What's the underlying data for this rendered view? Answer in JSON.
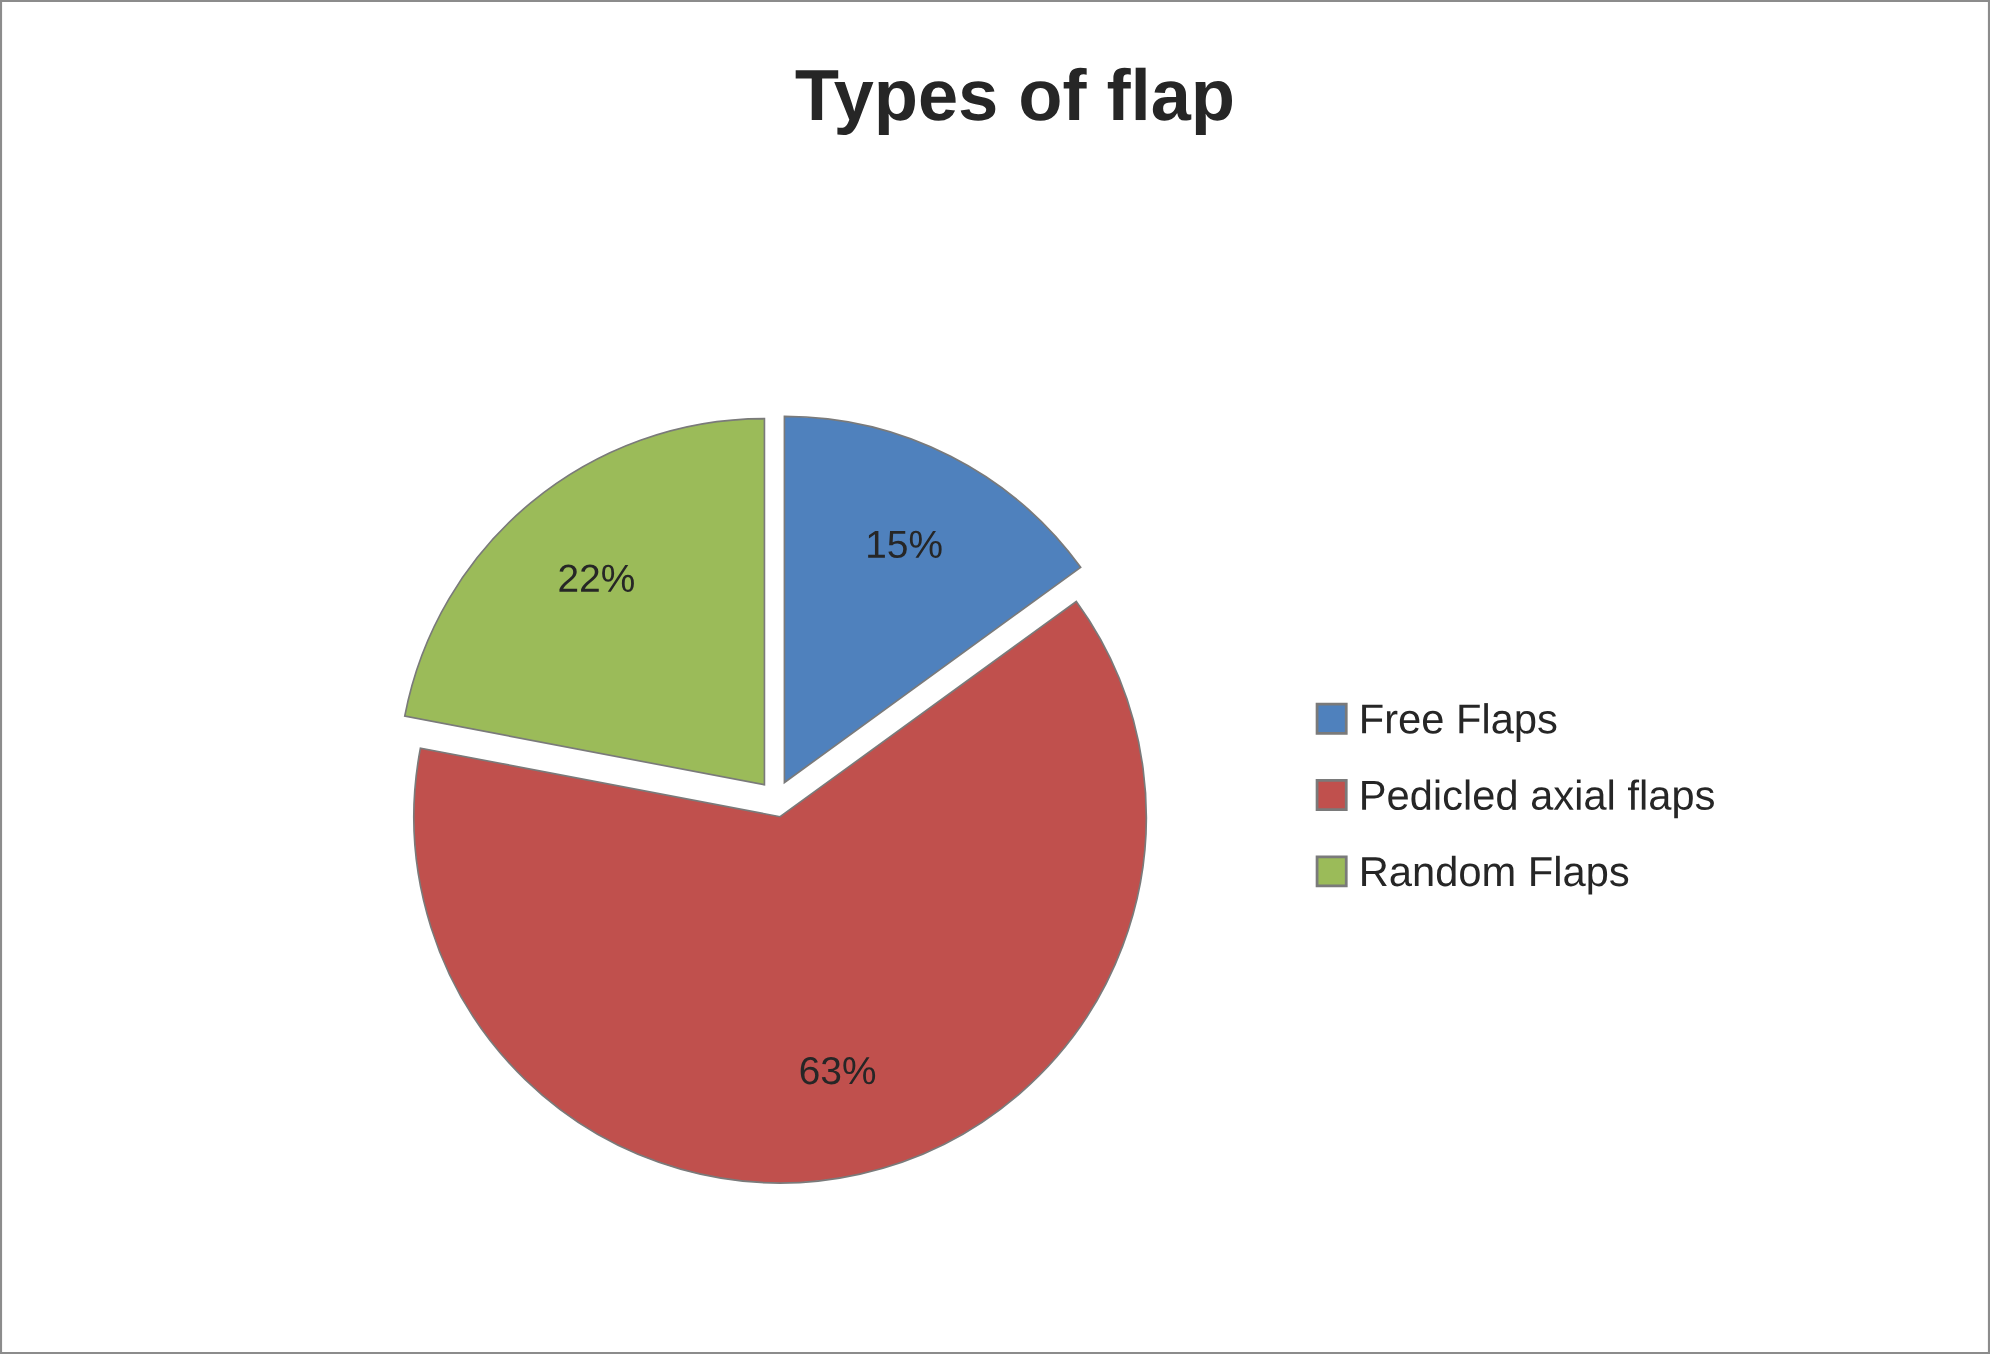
{
  "chart_data": {
    "type": "pie",
    "title": "Types of flap",
    "categories": [
      "Free Flaps",
      "Pedicled axial flaps",
      "Random Flaps"
    ],
    "values": [
      15,
      63,
      22
    ],
    "colors": [
      "#4f81bd",
      "#c0504d",
      "#9bbb59"
    ],
    "value_labels": [
      "15%",
      "63%",
      "22%"
    ],
    "legend": "right"
  }
}
